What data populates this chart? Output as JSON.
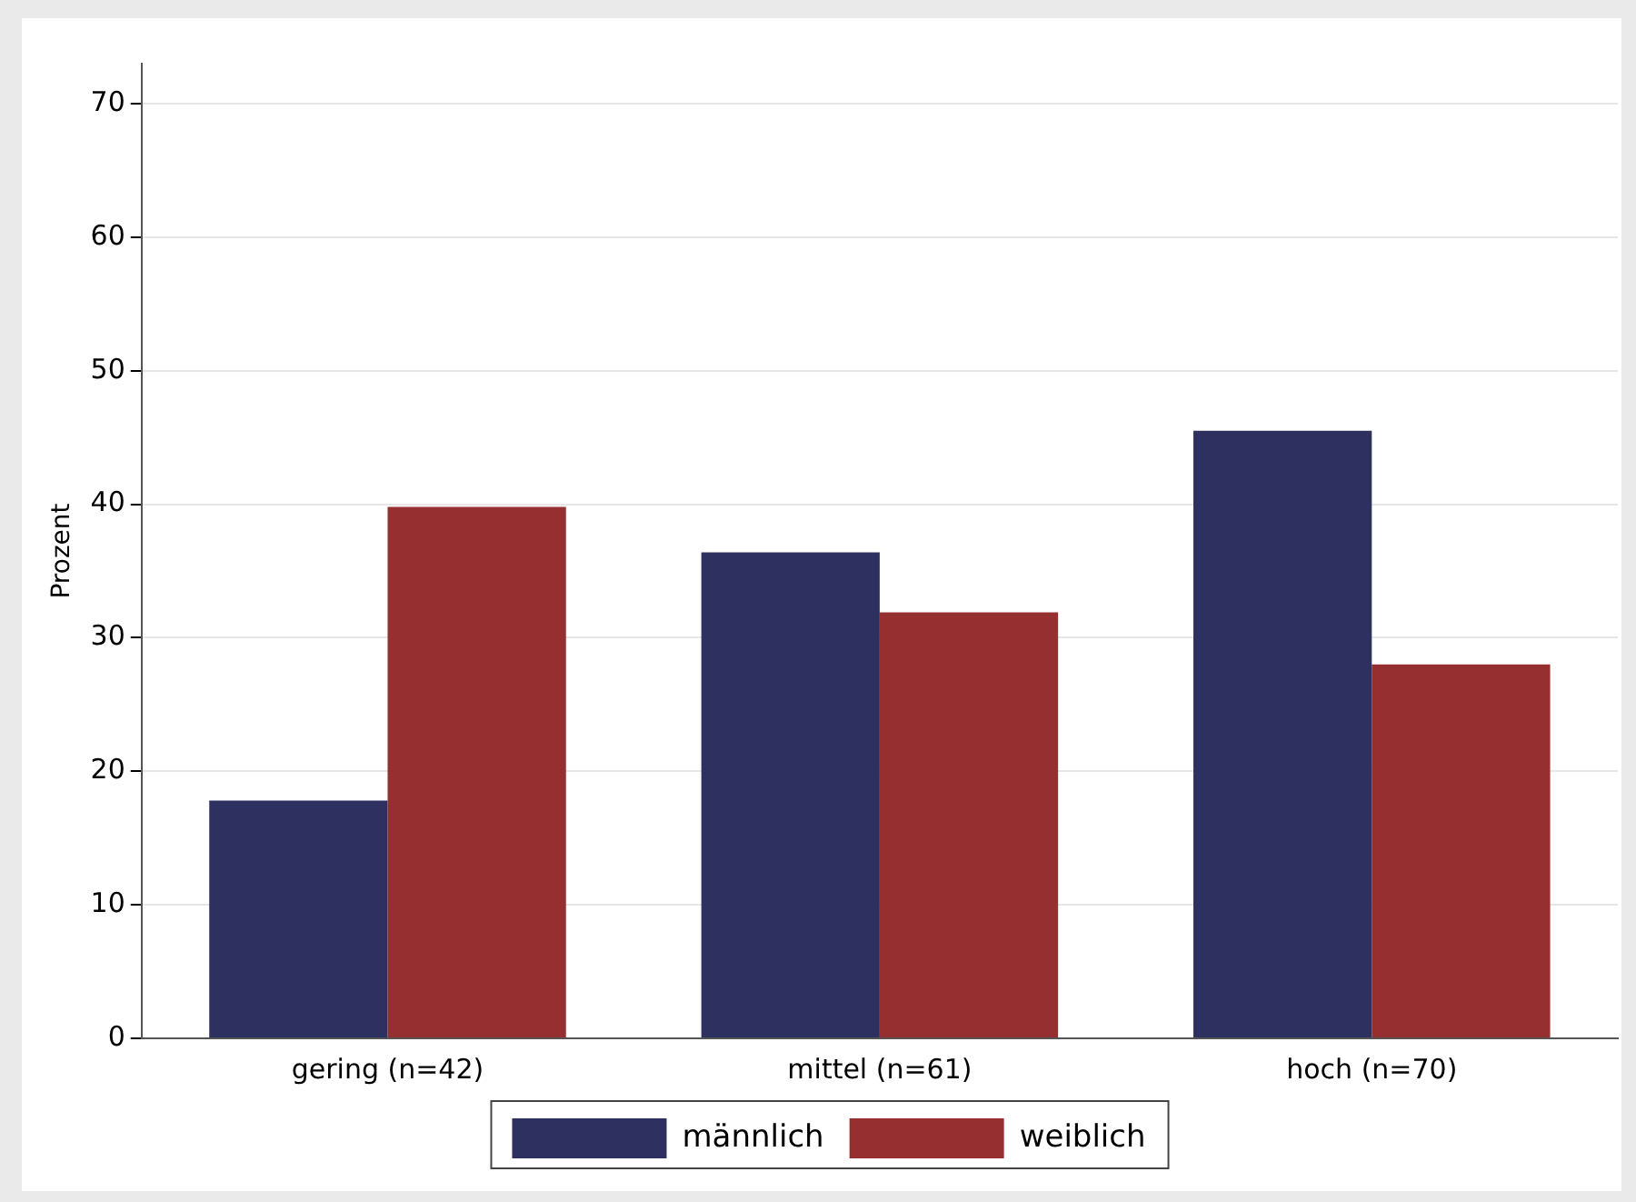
{
  "chart_data": {
    "type": "bar",
    "ylabel": "Prozent",
    "categories": [
      "gering (n=42)",
      "mittel (n=61)",
      "hoch (n=70)"
    ],
    "series": [
      {
        "name": "männlich",
        "color": "#2e3160",
        "values": [
          17.8,
          36.4,
          45.5
        ]
      },
      {
        "name": "weiblich",
        "color": "#963030",
        "values": [
          39.8,
          31.9,
          28.0
        ]
      }
    ],
    "ylim": [
      0,
      73
    ],
    "yticks": [
      0,
      10,
      20,
      30,
      40,
      50,
      60,
      70
    ],
    "grid": "y",
    "legend": "bottom"
  }
}
